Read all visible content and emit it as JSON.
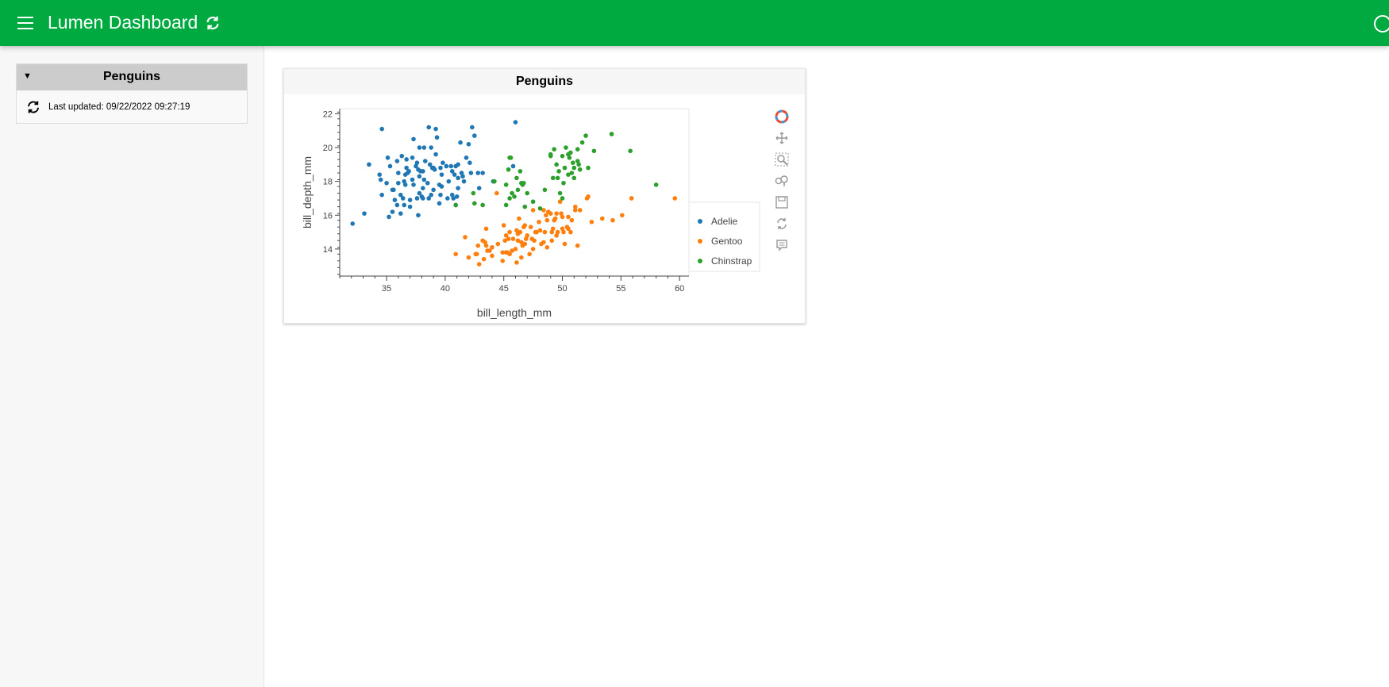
{
  "header": {
    "title": "Lumen Dashboard",
    "menu_icon": "hamburger-icon",
    "reload_icon": "reload-icon",
    "busy_icon": "busy-indicator-icon",
    "color": "#00aa41"
  },
  "sidebar": {
    "card": {
      "title": "Penguins",
      "collapse_symbol": "▼",
      "last_updated": "Last updated: 09/22/2022 09:27:19"
    }
  },
  "main": {
    "plot": {
      "title": "Penguins",
      "toolbar": [
        "bokeh-logo-icon",
        "pan-icon",
        "box-zoom-icon",
        "wheel-zoom-icon",
        "save-icon",
        "reset-icon",
        "hover-icon"
      ]
    }
  },
  "chart_data": {
    "type": "scatter",
    "title": "Penguins",
    "xlabel": "bill_length_mm",
    "ylabel": "bill_depth_mm",
    "xlim": [
      31.0,
      60.8
    ],
    "ylim": [
      12.4,
      22.3
    ],
    "xticks": [
      35,
      40,
      45,
      50,
      55,
      60
    ],
    "yticks": [
      14,
      16,
      18,
      20,
      22
    ],
    "legend_position": "right",
    "series": [
      {
        "name": "Adelie",
        "color": "#1f77b4",
        "points": [
          [
            32.1,
            15.5
          ],
          [
            33.1,
            16.1
          ],
          [
            33.5,
            19.0
          ],
          [
            34.4,
            18.4
          ],
          [
            34.5,
            18.1
          ],
          [
            34.6,
            21.1
          ],
          [
            34.6,
            17.2
          ],
          [
            35.0,
            17.9
          ],
          [
            35.1,
            19.4
          ],
          [
            35.2,
            15.9
          ],
          [
            35.3,
            18.9
          ],
          [
            35.5,
            17.5
          ],
          [
            35.5,
            16.2
          ],
          [
            35.6,
            17.5
          ],
          [
            35.7,
            16.9
          ],
          [
            35.9,
            19.2
          ],
          [
            35.9,
            16.6
          ],
          [
            36.0,
            17.9
          ],
          [
            36.0,
            18.5
          ],
          [
            36.2,
            17.2
          ],
          [
            36.2,
            16.1
          ],
          [
            36.3,
            19.5
          ],
          [
            36.4,
            17.0
          ],
          [
            36.5,
            18.0
          ],
          [
            36.5,
            16.6
          ],
          [
            36.6,
            17.8
          ],
          [
            36.7,
            18.8
          ],
          [
            36.7,
            19.3
          ],
          [
            36.8,
            18.5
          ],
          [
            36.9,
            18.6
          ],
          [
            37.0,
            16.9
          ],
          [
            37.0,
            16.5
          ],
          [
            37.2,
            18.1
          ],
          [
            37.2,
            19.4
          ],
          [
            37.3,
            20.5
          ],
          [
            37.3,
            17.8
          ],
          [
            37.5,
            18.9
          ],
          [
            37.6,
            19.1
          ],
          [
            37.6,
            17.0
          ],
          [
            37.7,
            18.7
          ],
          [
            37.7,
            16.0
          ],
          [
            37.8,
            18.3
          ],
          [
            37.8,
            17.3
          ],
          [
            37.8,
            20.0
          ],
          [
            37.9,
            18.6
          ],
          [
            38.1,
            18.6
          ],
          [
            38.1,
            17.6
          ],
          [
            38.1,
            17.0
          ],
          [
            38.2,
            18.1
          ],
          [
            38.2,
            20.0
          ],
          [
            38.3,
            19.2
          ],
          [
            38.5,
            17.9
          ],
          [
            38.6,
            21.2
          ],
          [
            38.6,
            17.0
          ],
          [
            38.7,
            19.0
          ],
          [
            38.8,
            17.2
          ],
          [
            38.8,
            20.0
          ],
          [
            38.9,
            18.8
          ],
          [
            39.0,
            17.5
          ],
          [
            39.1,
            18.7
          ],
          [
            39.2,
            19.6
          ],
          [
            39.2,
            21.1
          ],
          [
            39.3,
            20.6
          ],
          [
            39.5,
            16.7
          ],
          [
            39.5,
            17.8
          ],
          [
            39.6,
            18.8
          ],
          [
            39.6,
            17.2
          ],
          [
            39.7,
            18.4
          ],
          [
            39.7,
            17.7
          ],
          [
            39.8,
            19.1
          ],
          [
            40.1,
            18.9
          ],
          [
            40.2,
            17.0
          ],
          [
            40.3,
            18.0
          ],
          [
            40.5,
            18.9
          ],
          [
            40.6,
            18.6
          ],
          [
            40.6,
            17.2
          ],
          [
            40.7,
            17.0
          ],
          [
            40.8,
            18.4
          ],
          [
            40.9,
            18.9
          ],
          [
            41.0,
            17.1
          ],
          [
            41.1,
            18.2
          ],
          [
            41.1,
            19.0
          ],
          [
            41.3,
            20.3
          ],
          [
            41.4,
            18.5
          ],
          [
            41.5,
            18.3
          ],
          [
            41.6,
            18.0
          ],
          [
            41.8,
            19.4
          ],
          [
            42.0,
            20.2
          ],
          [
            42.1,
            19.1
          ],
          [
            42.2,
            18.5
          ],
          [
            42.3,
            21.2
          ],
          [
            42.5,
            20.7
          ],
          [
            42.8,
            18.5
          ],
          [
            42.9,
            17.6
          ],
          [
            43.2,
            18.5
          ],
          [
            44.1,
            18.0
          ],
          [
            45.8,
            18.9
          ],
          [
            46.0,
            21.5
          ],
          [
            40.9,
            16.6
          ],
          [
            39.0,
            18.8
          ],
          [
            38.0,
            17.1
          ],
          [
            36.6,
            18.4
          ],
          [
            41.1,
            17.6
          ]
        ]
      },
      {
        "name": "Gentoo",
        "color": "#ff7f0e",
        "points": [
          [
            40.9,
            13.7
          ],
          [
            41.7,
            14.7
          ],
          [
            42.0,
            13.5
          ],
          [
            42.6,
            13.7
          ],
          [
            42.7,
            13.7
          ],
          [
            42.8,
            14.2
          ],
          [
            42.9,
            13.1
          ],
          [
            43.2,
            14.5
          ],
          [
            43.3,
            13.4
          ],
          [
            43.4,
            14.4
          ],
          [
            43.5,
            14.2
          ],
          [
            43.5,
            15.2
          ],
          [
            43.6,
            13.9
          ],
          [
            43.8,
            13.9
          ],
          [
            44.0,
            13.6
          ],
          [
            44.4,
            17.3
          ],
          [
            44.5,
            14.3
          ],
          [
            44.9,
            13.8
          ],
          [
            44.9,
            13.3
          ],
          [
            45.1,
            14.5
          ],
          [
            45.2,
            13.8
          ],
          [
            45.2,
            14.8
          ],
          [
            45.3,
            13.8
          ],
          [
            45.4,
            14.6
          ],
          [
            45.5,
            13.7
          ],
          [
            45.5,
            15.0
          ],
          [
            45.7,
            13.9
          ],
          [
            45.8,
            14.6
          ],
          [
            46.1,
            13.2
          ],
          [
            46.1,
            15.1
          ],
          [
            46.2,
            14.5
          ],
          [
            46.2,
            14.9
          ],
          [
            46.3,
            15.8
          ],
          [
            46.4,
            15.0
          ],
          [
            46.5,
            13.5
          ],
          [
            46.5,
            14.4
          ],
          [
            46.6,
            14.2
          ],
          [
            46.7,
            15.3
          ],
          [
            46.8,
            14.3
          ],
          [
            46.8,
            15.4
          ],
          [
            46.9,
            14.6
          ],
          [
            47.2,
            13.7
          ],
          [
            47.3,
            15.3
          ],
          [
            47.4,
            14.6
          ],
          [
            47.5,
            14.0
          ],
          [
            47.6,
            14.5
          ],
          [
            47.7,
            15.0
          ],
          [
            47.8,
            15.0
          ],
          [
            48.1,
            15.1
          ],
          [
            48.2,
            14.3
          ],
          [
            48.4,
            14.4
          ],
          [
            48.4,
            16.3
          ],
          [
            48.5,
            15.0
          ],
          [
            48.6,
            16.0
          ],
          [
            48.7,
            14.1
          ],
          [
            48.7,
            15.7
          ],
          [
            48.8,
            16.2
          ],
          [
            49.0,
            16.1
          ],
          [
            49.1,
            14.5
          ],
          [
            49.1,
            15.0
          ],
          [
            49.2,
            15.2
          ],
          [
            49.3,
            15.7
          ],
          [
            49.4,
            15.8
          ],
          [
            49.5,
            16.1
          ],
          [
            49.6,
            15.0
          ],
          [
            49.8,
            16.8
          ],
          [
            49.9,
            16.1
          ],
          [
            50.0,
            15.2
          ],
          [
            50.0,
            15.9
          ],
          [
            50.1,
            15.0
          ],
          [
            50.2,
            14.3
          ],
          [
            50.4,
            15.3
          ],
          [
            50.5,
            15.2
          ],
          [
            50.5,
            15.9
          ],
          [
            50.7,
            15.0
          ],
          [
            50.8,
            15.7
          ],
          [
            51.1,
            16.3
          ],
          [
            51.1,
            16.5
          ],
          [
            51.3,
            14.2
          ],
          [
            51.5,
            16.3
          ],
          [
            52.1,
            17.0
          ],
          [
            52.2,
            17.1
          ],
          [
            52.5,
            15.6
          ],
          [
            53.4,
            15.8
          ],
          [
            54.3,
            15.7
          ],
          [
            55.1,
            16.0
          ],
          [
            55.9,
            17.0
          ],
          [
            59.6,
            17.0
          ],
          [
            47.0,
            14.8
          ],
          [
            45.0,
            15.4
          ],
          [
            46.0,
            14.0
          ],
          [
            48.0,
            15.6
          ],
          [
            44.0,
            14.1
          ],
          [
            49.5,
            14.8
          ],
          [
            47.5,
            16.3
          ]
        ]
      },
      {
        "name": "Chinstrap",
        "color": "#2ca02c",
        "points": [
          [
            40.9,
            16.6
          ],
          [
            42.4,
            17.3
          ],
          [
            42.5,
            16.7
          ],
          [
            43.2,
            16.6
          ],
          [
            44.2,
            18.0
          ],
          [
            45.2,
            16.6
          ],
          [
            45.2,
            17.8
          ],
          [
            45.4,
            18.7
          ],
          [
            45.5,
            17.0
          ],
          [
            45.5,
            19.4
          ],
          [
            45.6,
            19.4
          ],
          [
            45.7,
            17.3
          ],
          [
            45.9,
            17.1
          ],
          [
            46.1,
            18.2
          ],
          [
            46.2,
            17.5
          ],
          [
            46.4,
            18.6
          ],
          [
            46.5,
            17.9
          ],
          [
            46.6,
            17.8
          ],
          [
            46.7,
            17.9
          ],
          [
            46.8,
            16.5
          ],
          [
            47.0,
            17.3
          ],
          [
            47.5,
            16.8
          ],
          [
            48.1,
            16.4
          ],
          [
            48.5,
            17.5
          ],
          [
            49.0,
            19.5
          ],
          [
            49.2,
            18.2
          ],
          [
            49.3,
            19.9
          ],
          [
            49.5,
            19.0
          ],
          [
            49.6,
            18.2
          ],
          [
            49.7,
            18.6
          ],
          [
            49.8,
            17.3
          ],
          [
            50.0,
            19.5
          ],
          [
            50.1,
            17.9
          ],
          [
            50.2,
            18.8
          ],
          [
            50.3,
            20.0
          ],
          [
            50.5,
            18.4
          ],
          [
            50.6,
            19.4
          ],
          [
            50.7,
            19.7
          ],
          [
            50.8,
            18.5
          ],
          [
            50.9,
            19.1
          ],
          [
            51.0,
            18.8
          ],
          [
            51.3,
            19.2
          ],
          [
            51.4,
            19.0
          ],
          [
            51.5,
            18.7
          ],
          [
            51.7,
            20.3
          ],
          [
            52.0,
            20.7
          ],
          [
            52.2,
            18.8
          ],
          [
            52.7,
            19.8
          ],
          [
            54.2,
            20.8
          ],
          [
            55.8,
            19.8
          ],
          [
            58.0,
            17.8
          ],
          [
            49.0,
            19.6
          ],
          [
            50.5,
            19.6
          ],
          [
            51.3,
            19.9
          ],
          [
            50.0,
            17.0
          ],
          [
            51.0,
            18.2
          ]
        ]
      }
    ]
  }
}
